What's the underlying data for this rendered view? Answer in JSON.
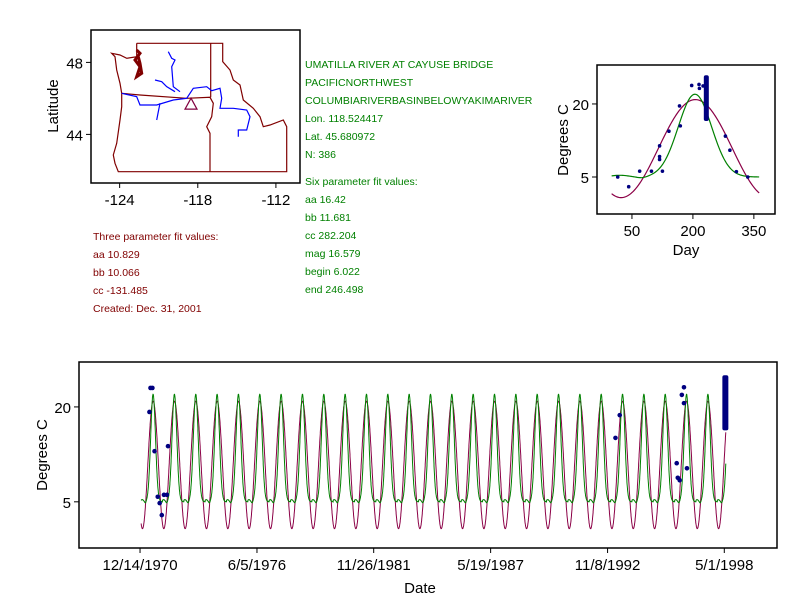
{
  "colors": {
    "six_fit": "#008000",
    "three_fit": "#8b0046",
    "points": "#000080",
    "map_border": "#800000",
    "rivers": "#0000ff",
    "station": "#800040"
  },
  "station_info": {
    "name": "UMATILLA RIVER AT CAYUSE BRIDGE",
    "region": "PACIFICNORTHWEST",
    "basin": "COLUMBIARIVERBASINBELOWYAKIMARIVER",
    "lon": "Lon. 118.524417",
    "lat": "Lat. 45.680972",
    "n": "N: 386"
  },
  "six_parameter_fit": {
    "title": "Six parameter fit values:",
    "aa": "aa 16.42",
    "bb": "bb 11.681",
    "cc": "cc 282.204",
    "mag": "mag 16.579",
    "begin": "begin 6.022",
    "end": "end 246.498"
  },
  "three_parameter_fit": {
    "title": "Three parameter fit values:",
    "aa": "aa 10.829",
    "bb": "bb 10.066",
    "cc": "cc -131.485",
    "created": "Created:   Dec. 31, 2001"
  },
  "chart_data": [
    {
      "type": "map",
      "ylabel": "Latitude",
      "xlim": [
        -126.2,
        -110.15
      ],
      "ylim": [
        41.3,
        49.8
      ],
      "xticks": [
        -124,
        -118,
        -112
      ],
      "xtick_labels": [
        "-124",
        "-118",
        "-112"
      ],
      "yticks": [
        48,
        44
      ],
      "ytick_labels": [
        "48",
        "44"
      ],
      "station": {
        "lon": -118.52,
        "lat": 45.68,
        "marker": "triangle"
      }
    },
    {
      "type": "scatter",
      "xlabel": "Day",
      "ylabel": "Degrees C",
      "xlim": [
        -36,
        402
      ],
      "ylim": [
        -2.6,
        28
      ],
      "xticks": [
        50,
        200,
        350
      ],
      "xtick_labels": [
        "50",
        "200",
        "350"
      ],
      "yticks": [
        5,
        20
      ],
      "ytick_labels": [
        "5",
        "20"
      ],
      "points": [
        [
          15,
          5.0
        ],
        [
          42,
          3.0
        ],
        [
          69,
          6.2
        ],
        [
          98,
          6.2
        ],
        [
          125,
          6.2
        ],
        [
          118,
          11.4
        ],
        [
          118,
          9.2
        ],
        [
          118,
          8.6
        ],
        [
          141,
          14.4
        ],
        [
          169,
          15.5
        ],
        [
          167,
          19.6
        ],
        [
          197,
          23.8
        ],
        [
          215,
          24.0
        ],
        [
          216,
          23.2
        ],
        [
          225,
          23.7
        ],
        [
          280,
          13.4
        ],
        [
          291,
          10.5
        ],
        [
          307,
          6.1
        ],
        [
          335,
          5.0
        ]
      ],
      "dense_cluster": {
        "day": 233,
        "min": 16.5,
        "max": 25.9
      },
      "series": [
        {
          "name": "six parameter fit",
          "color": "#008000"
        },
        {
          "name": "three parameter fit",
          "color": "#8b0046"
        }
      ]
    },
    {
      "type": "line",
      "xlabel": "Date",
      "ylabel": "Degrees C",
      "xlim": [
        1968.09,
        2000.8
      ],
      "ylim": [
        -2.3,
        27.1
      ],
      "xticks": [
        1970.95,
        1976.43,
        1981.9,
        1987.38,
        1992.86,
        1998.33
      ],
      "xtick_labels": [
        "12/14/1970",
        "6/5/1976",
        "11/26/1981",
        "5/19/1987",
        "11/8/1992",
        "5/1/1998"
      ],
      "yticks": [
        5,
        20
      ],
      "ytick_labels": [
        "5",
        "20"
      ],
      "curve_range": [
        1971.0,
        1998.4
      ],
      "points": [
        [
          1971.39,
          19.2
        ],
        [
          1971.44,
          23.0
        ],
        [
          1971.53,
          23.0
        ],
        [
          1971.63,
          13.0
        ],
        [
          1971.78,
          5.8
        ],
        [
          1971.87,
          4.8
        ],
        [
          1971.97,
          2.9
        ],
        [
          1972.07,
          6.1
        ],
        [
          1972.21,
          6.1
        ],
        [
          1972.26,
          13.8
        ],
        [
          1993.23,
          15.1
        ],
        [
          1993.43,
          18.7
        ],
        [
          1996.1,
          11.1
        ],
        [
          1996.15,
          8.8
        ],
        [
          1996.24,
          8.4
        ],
        [
          1996.34,
          21.9
        ],
        [
          1996.44,
          23.1
        ],
        [
          1996.44,
          20.6
        ],
        [
          1996.58,
          10.3
        ]
      ],
      "dense_cluster": {
        "x": 1998.38,
        "min": 16.3,
        "max": 25.0
      }
    }
  ]
}
